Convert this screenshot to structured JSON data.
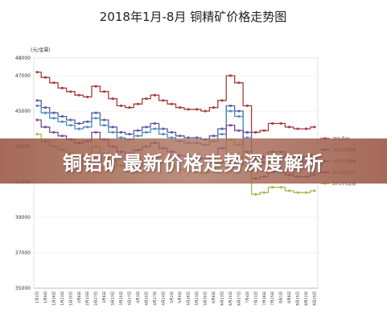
{
  "banner": {
    "text": "铜铝矿最新价格走势深度解析"
  },
  "chart_data": {
    "type": "line",
    "title": "2018年1月-8月 铜精矿价格走势图",
    "unit_label": "(元/金属)",
    "ylim": [
      35000,
      48000
    ],
    "yticks": [
      "48000",
      "47000",
      "45000",
      "43000",
      "41000",
      "39000",
      "37000",
      "35000"
    ],
    "ytick_values": [
      48000,
      47000,
      45000,
      43000,
      41000,
      39000,
      37000,
      35000
    ],
    "categories": [
      "1月2日",
      "1月9日",
      "1月16日",
      "1月23日",
      "1月30日",
      "2月6日",
      "2月13日",
      "2月27日",
      "3月6日",
      "3月13日",
      "3月20日",
      "3月27日",
      "4月3日",
      "4月10日",
      "4月17日",
      "4月24日",
      "5月2日",
      "5月9日",
      "5月16日",
      "5月23日",
      "5月30日",
      "6月6日",
      "6月13日",
      "6月20日",
      "6月27日",
      "7月4日",
      "7月11日",
      "7月18日",
      "7月25日",
      "8月1日",
      "8月8日",
      "8月15日",
      "8月22日",
      "8月29日"
    ],
    "series": [
      {
        "name": "25%贵州",
        "color": "#a83c3c",
        "values": [
          47200,
          46900,
          46600,
          46300,
          46100,
          45900,
          45800,
          46400,
          46100,
          45700,
          45300,
          45200,
          45400,
          45700,
          45900,
          45600,
          45400,
          45200,
          45100,
          45100,
          45000,
          45200,
          45600,
          47000,
          46600,
          45300,
          43800,
          43900,
          44300,
          44300,
          44100,
          44000,
          44000,
          44100
        ]
      },
      {
        "name": "25-27%陕西",
        "color": "#5b5ba8",
        "values": [
          45600,
          45200,
          44900,
          44700,
          44500,
          44300,
          44400,
          44900,
          44500,
          44100,
          43800,
          43700,
          43900,
          44100,
          44300,
          44000,
          43800,
          43600,
          43500,
          43500,
          43400,
          43600,
          44000,
          45300,
          45000,
          43800,
          42300,
          42400,
          42700,
          42700,
          42500,
          42400,
          42400,
          42500
        ]
      },
      {
        "name": "18-20%湖南",
        "color": "#4a90b8",
        "values": [
          45300,
          44900,
          44600,
          44400,
          44200,
          44000,
          44100,
          44600,
          44200,
          43800,
          43500,
          43400,
          43600,
          43800,
          44000,
          43700,
          43500,
          43300,
          43200,
          43200,
          43100,
          43300,
          43700,
          45000,
          44700,
          43500,
          42000,
          42100,
          42400,
          42400,
          42200,
          42100,
          42100,
          42200
        ]
      },
      {
        "name": "20-25%辽宁",
        "color": "#7a4a9a",
        "values": [
          44500,
          44100,
          43800,
          43600,
          43400,
          43200,
          43300,
          43800,
          43400,
          43000,
          42700,
          42600,
          42800,
          43000,
          43200,
          42900,
          42700,
          42500,
          42400,
          42400,
          42300,
          42500,
          42900,
          44200,
          43900,
          42700,
          41200,
          41300,
          41600,
          41600,
          41400,
          41300,
          41300,
          41400
        ]
      },
      {
        "name": "20-25%云南",
        "color": "#a8b84a",
        "values": [
          43700,
          43300,
          43000,
          42800,
          42600,
          42400,
          42500,
          43000,
          42600,
          42200,
          41900,
          41800,
          42000,
          42200,
          42400,
          42100,
          41900,
          41700,
          41600,
          41600,
          41500,
          41700,
          42100,
          43400,
          43100,
          41900,
          40300,
          40400,
          40700,
          40700,
          40500,
          40400,
          40400,
          40500
        ]
      }
    ]
  }
}
